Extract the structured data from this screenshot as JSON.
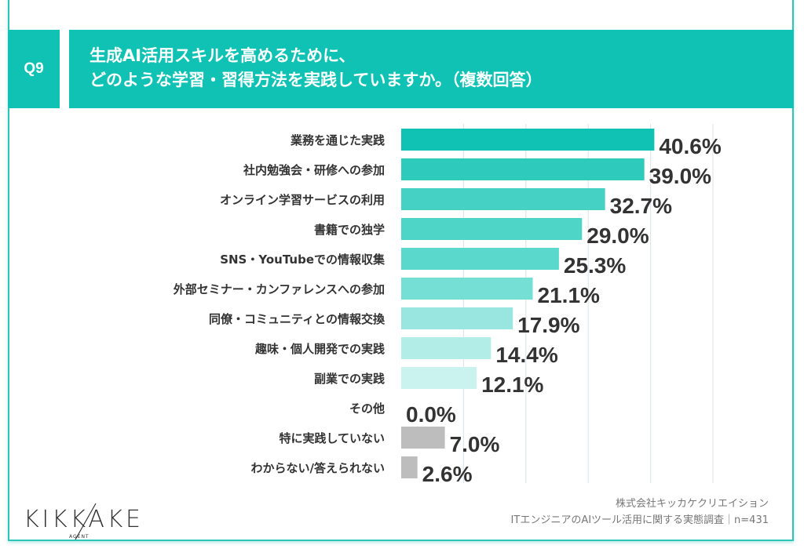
{
  "header": {
    "question_no": "Q9",
    "title_lines": [
      "生成AI活用スキルを高めるために、",
      "どのような学習・習得方法を実践していますか。（複数回答）"
    ]
  },
  "chart_data": {
    "type": "bar",
    "orientation": "horizontal",
    "categories": [
      "業務を通じた実践",
      "社内勉強会・研修への参加",
      "オンライン学習サービスの利用",
      "書籍での独学",
      "SNS・YouTubeでの情報収集",
      "外部セミナー・カンファレンスへの参加",
      "同僚・コミュニティとの情報交換",
      "趣味・個人開発での実践",
      "副業での実践",
      "その他",
      "特に実践していない",
      "わからない/答えられない"
    ],
    "values": [
      40.6,
      39.0,
      32.7,
      29.0,
      25.3,
      21.1,
      17.9,
      14.4,
      12.1,
      0.0,
      7.0,
      2.6
    ],
    "value_labels": [
      "40.6%",
      "39.0%",
      "32.7%",
      "29.0%",
      "25.3%",
      "21.1%",
      "17.9%",
      "14.4%",
      "12.1%",
      "0.0%",
      "7.0%",
      "2.6%"
    ],
    "unit": "%",
    "xlim": [
      0,
      50
    ],
    "grid": true,
    "colors": [
      "#0fc2b3",
      "#2ecbbd",
      "#45d2c4",
      "#4fd5c8",
      "#5ad8cc",
      "#76dfd5",
      "#98e6df",
      "#b3ede7",
      "#caf2ee",
      "#d9f5f2",
      "#bdbdbd",
      "#bdbdbd"
    ]
  },
  "footer": {
    "company": "株式会社キッカケクリエイション",
    "survey": "ITエンジニアのAIツール活用に関する実態調査｜n=431",
    "logo_text": "KIKKAKE",
    "logo_sub": "AGENT"
  }
}
